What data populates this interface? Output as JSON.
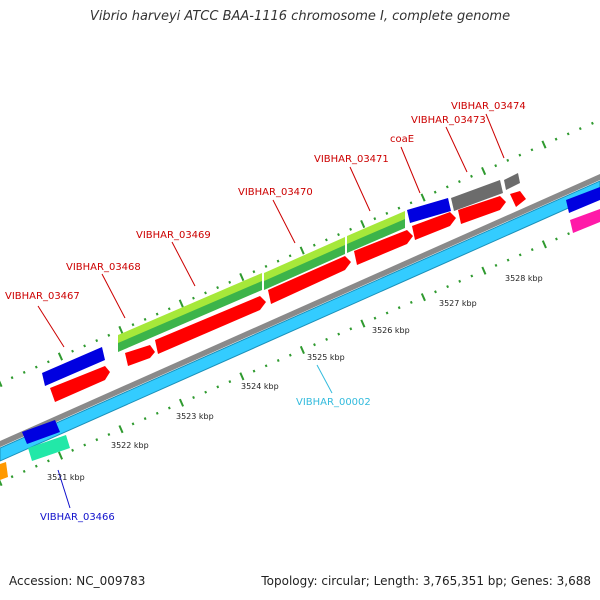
{
  "title": "Vibrio harveyi ATCC BAA-1116 chromosome I, complete genome",
  "footer": {
    "accession": "Accession: NC_009783",
    "summary": "Topology: circular; Length: 3,765,351 bp; Genes: 3,688"
  },
  "colors": {
    "red": "#ff0000",
    "blue": "#0000e0",
    "green": "#3cb44a",
    "light_green": "#a6e83a",
    "gray": "#6c6c6c",
    "cyan": "#33ccff",
    "backbone": "#8a8a8a",
    "tick": "#2f9a2f",
    "label_red": "#cc0000",
    "label_blue": "#1010cc",
    "label_cyan": "#33bbdd"
  },
  "scale_labels": [
    "3521 kbp",
    "3522 kbp",
    "3523 kbp",
    "3524 kbp",
    "3525 kbp",
    "3526 kbp",
    "3527 kbp",
    "3528 kbp"
  ],
  "gene_labels": {
    "vibhar_03467": "VIBHAR_03467",
    "vibhar_03468": "VIBHAR_03468",
    "vibhar_03469": "VIBHAR_03469",
    "vibhar_03470": "VIBHAR_03470",
    "vibhar_03471": "VIBHAR_03471",
    "coae": "coaE",
    "vibhar_03473": "VIBHAR_03473",
    "vibhar_03474": "VIBHAR_03474",
    "vibhar_03466": "VIBHAR_03466",
    "vibhar_00002": "VIBHAR_00002"
  }
}
